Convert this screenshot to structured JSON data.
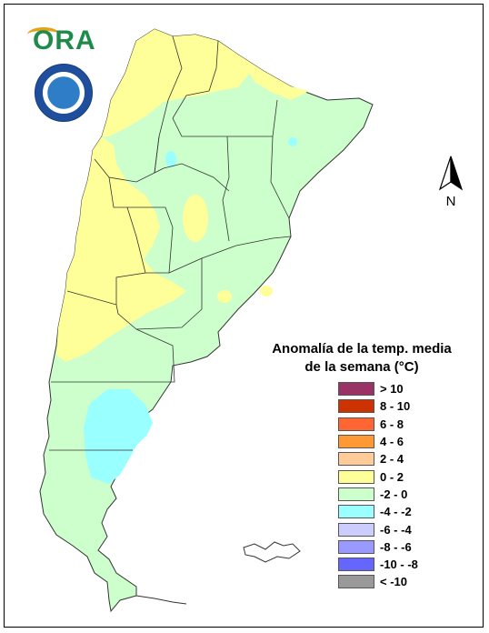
{
  "logo": {
    "text": "ORA",
    "seal_icon": "smn-argentina-seal"
  },
  "north_arrow": {
    "label": "N"
  },
  "legend": {
    "title_line1": "Anomalía de la temp. media",
    "title_line2": "de la semana (°C)",
    "items": [
      {
        "label": "> 10",
        "color": "#993366"
      },
      {
        "label": "8 - 10",
        "color": "#cc3300"
      },
      {
        "label": "6 - 8",
        "color": "#ff6633"
      },
      {
        "label": "4 - 6",
        "color": "#ff9933"
      },
      {
        "label": "2 - 4",
        "color": "#ffcc99"
      },
      {
        "label": "0 - 2",
        "color": "#ffff99"
      },
      {
        "label": "-2 - 0",
        "color": "#ccffcc"
      },
      {
        "label": "-4 - -2",
        "color": "#99ffff"
      },
      {
        "label": "-6 - -4",
        "color": "#ccccff"
      },
      {
        "label": "-8 - -6",
        "color": "#9999ff"
      },
      {
        "label": "-10 - -8",
        "color": "#6666ff"
      },
      {
        "label": "< -10",
        "color": "#999999"
      }
    ]
  },
  "map": {
    "base_color": "#ccffcc",
    "warm_color": "#ffff99",
    "cool_color": "#99ffff",
    "border_color": "#333333"
  }
}
